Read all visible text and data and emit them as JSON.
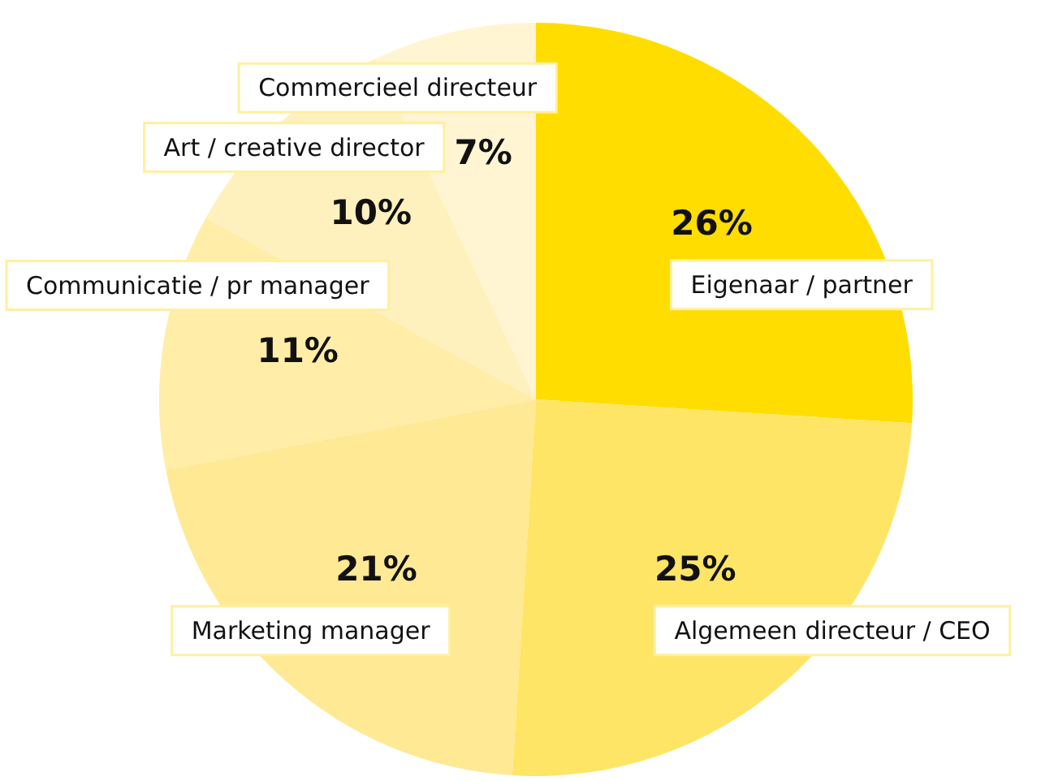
{
  "chart_data": {
    "type": "pie",
    "categories": [
      "Eigenaar / partner",
      "Algemeen directeur / CEO",
      "Marketing manager",
      "Communicatie / pr manager",
      "Art / creative director",
      "Commercieel directeur"
    ],
    "values": [
      26,
      25,
      21,
      11,
      10,
      7
    ],
    "value_labels": [
      "26%",
      "25%",
      "21%",
      "11%",
      "10%",
      "7%"
    ],
    "colors": [
      "#ffdd00",
      "#ffe566",
      "#ffe994",
      "#ffeda8",
      "#fff1bd",
      "#fff5d3"
    ],
    "legend": false
  }
}
